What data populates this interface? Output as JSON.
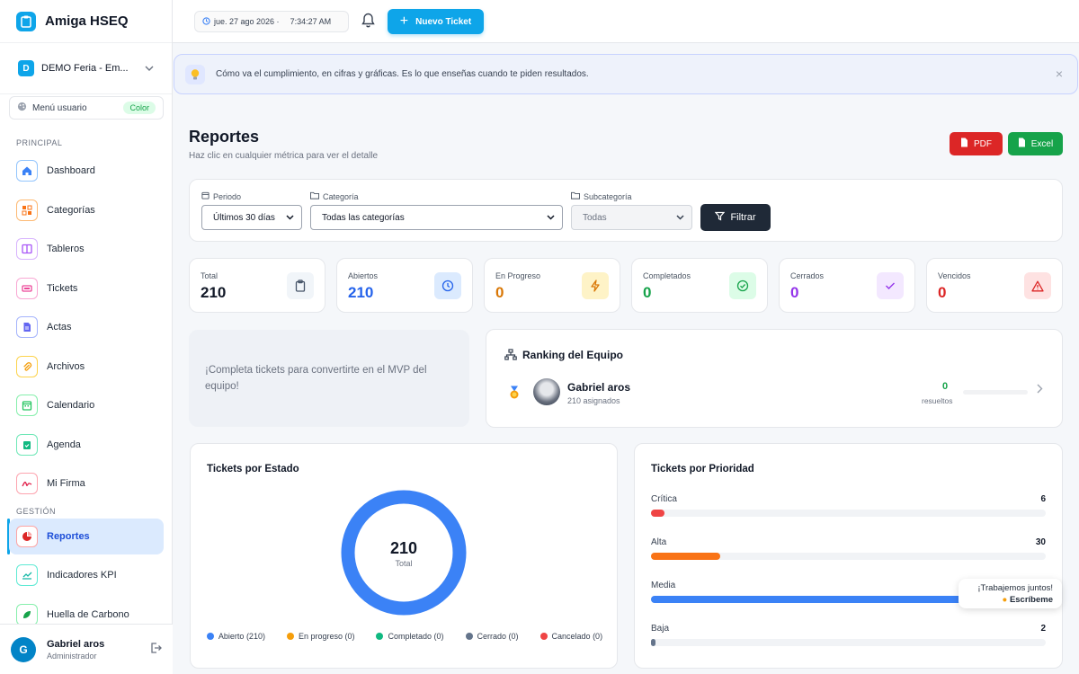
{
  "app": {
    "title": "Amiga HSEQ"
  },
  "company": {
    "badge": "D",
    "name": "DEMO Feria - Em..."
  },
  "user_menu": {
    "label": "Menú usuario",
    "color_badge": "Color"
  },
  "sections": {
    "principal": "PRINCIPAL",
    "gestion": "GESTIÓN"
  },
  "nav": [
    {
      "label": "Dashboard",
      "icon": "home-icon",
      "color": "#3b82f6"
    },
    {
      "label": "Categorías",
      "icon": "category-icon",
      "color": "#f97316"
    },
    {
      "label": "Tableros",
      "icon": "board-icon",
      "color": "#a855f7"
    },
    {
      "label": "Tickets",
      "icon": "ticket-icon",
      "color": "#ec4899"
    },
    {
      "label": "Actas",
      "icon": "document-icon",
      "color": "#6366f1"
    },
    {
      "label": "Archivos",
      "icon": "paperclip-icon",
      "color": "#f59e0b"
    },
    {
      "label": "Calendario",
      "icon": "calendar-icon",
      "color": "#22c55e"
    },
    {
      "label": "Agenda",
      "icon": "agenda-icon",
      "color": "#10b981"
    },
    {
      "label": "Mi Firma",
      "icon": "signature-icon",
      "color": "#e11d48"
    },
    {
      "label": "Reportes",
      "icon": "pie-chart-icon",
      "color": "#dc2626",
      "active": true
    },
    {
      "label": "Indicadores KPI",
      "icon": "line-chart-icon",
      "color": "#14b8a6"
    },
    {
      "label": "Huella de Carbono",
      "icon": "leaf-icon",
      "color": "#16a34a"
    }
  ],
  "user": {
    "initial": "G",
    "name": "Gabriel aros",
    "role": "Administrador"
  },
  "topbar": {
    "date": "jue. 27 ago 2026 ·",
    "time": "7:34:27 AM",
    "new_ticket": "Nuevo Ticket"
  },
  "banner": {
    "text": "Cómo va el cumplimiento, en cifras y gráficas. Es lo que enseñas cuando te piden resultados.",
    "close": "×"
  },
  "page": {
    "title": "Reportes",
    "subtitle": "Haz clic en cualquier métrica para ver el detalle",
    "pdf": "PDF",
    "excel": "Excel"
  },
  "filters": {
    "period_label": "Periodo",
    "period_value": "Últimos 30 días",
    "category_label": "Categoría",
    "category_value": "Todas las categorías",
    "subcategory_label": "Subcategoría",
    "subcategory_value": "Todas",
    "button": "Filtrar"
  },
  "stats": [
    {
      "label": "Total",
      "value": "210",
      "color": "#111827",
      "bg": "#f1f5f9",
      "icon": "clipboard-icon",
      "icon_color": "#475569"
    },
    {
      "label": "Abiertos",
      "value": "210",
      "color": "#2563eb",
      "bg": "#dbeafe",
      "icon": "clock-icon",
      "icon_color": "#2563eb"
    },
    {
      "label": "En Progreso",
      "value": "0",
      "color": "#d97706",
      "bg": "#fef3c7",
      "icon": "bolt-icon",
      "icon_color": "#d97706"
    },
    {
      "label": "Completados",
      "value": "0",
      "color": "#16a34a",
      "bg": "#dcfce7",
      "icon": "check-circle-icon",
      "icon_color": "#16a34a"
    },
    {
      "label": "Cerrados",
      "value": "0",
      "color": "#9333ea",
      "bg": "#f3e8ff",
      "icon": "check-icon",
      "icon_color": "#9333ea"
    },
    {
      "label": "Vencidos",
      "value": "0",
      "color": "#dc2626",
      "bg": "#fee2e2",
      "icon": "warning-icon",
      "icon_color": "#dc2626"
    }
  ],
  "mvp": {
    "text": "¡Completa tickets para convertirte en el MVP del equipo!"
  },
  "ranking": {
    "title": "Ranking del Equipo",
    "members": [
      {
        "name": "Gabriel aros",
        "assigned": "210 asignados",
        "solved": "0",
        "solved_label": "resueltos"
      }
    ]
  },
  "estado_chart": {
    "title": "Tickets por Estado",
    "total": "210",
    "total_label": "Total",
    "legend": [
      {
        "label": "Abierto (210)",
        "color": "#3b82f6"
      },
      {
        "label": "En progreso (0)",
        "color": "#f59e0b"
      },
      {
        "label": "Completado (0)",
        "color": "#10b981"
      },
      {
        "label": "Cerrado (0)",
        "color": "#64748b"
      },
      {
        "label": "Cancelado (0)",
        "color": "#ef4444"
      }
    ]
  },
  "prioridad_chart": {
    "title": "Tickets por Prioridad",
    "rows": [
      {
        "label": "Crítica",
        "value": "6",
        "color": "#ef4444",
        "fraction": 0.035
      },
      {
        "label": "Alta",
        "value": "30",
        "color": "#f97316",
        "fraction": 0.175
      },
      {
        "label": "Media",
        "value": "",
        "color": "#3b82f6",
        "fraction": 0.82
      },
      {
        "label": "Baja",
        "value": "2",
        "color": "#64748b",
        "fraction": 0.012
      }
    ]
  },
  "chat": {
    "line1": "¡Trabajemos juntos!",
    "line2": "Escríbeme"
  }
}
